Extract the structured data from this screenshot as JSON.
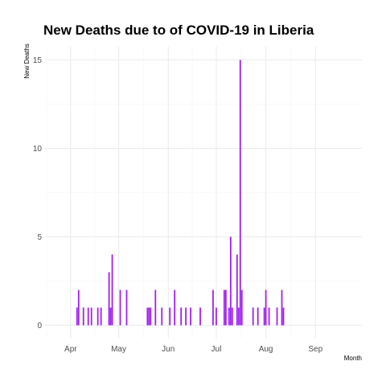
{
  "chart_data": {
    "type": "bar",
    "title": "New Deaths due to of COVID-19 in Liberia",
    "xlabel": "Month",
    "ylabel": "New Deaths",
    "x_range": [
      "2020-03-16",
      "2020-09-30"
    ],
    "ylim": [
      -0.75,
      15.75
    ],
    "y_ticks": [
      0,
      5,
      10,
      15
    ],
    "x_ticks": [
      {
        "label": "Apr",
        "date": "2020-04-01"
      },
      {
        "label": "May",
        "date": "2020-05-01"
      },
      {
        "label": "Jun",
        "date": "2020-06-01"
      },
      {
        "label": "Jul",
        "date": "2020-07-01"
      },
      {
        "label": "Aug",
        "date": "2020-08-01"
      },
      {
        "label": "Sep",
        "date": "2020-09-01"
      }
    ],
    "grid": true,
    "bar_color": "#a020f0",
    "series": [
      {
        "x": [
          "2020-04-05",
          "2020-04-06",
          "2020-04-09",
          "2020-04-12",
          "2020-04-14",
          "2020-04-18",
          "2020-04-20",
          "2020-04-25",
          "2020-04-26",
          "2020-04-27",
          "2020-05-02",
          "2020-05-06",
          "2020-05-19",
          "2020-05-20",
          "2020-05-21",
          "2020-05-24",
          "2020-05-28",
          "2020-06-02",
          "2020-06-05",
          "2020-06-09",
          "2020-06-12",
          "2020-06-15",
          "2020-06-21",
          "2020-06-29",
          "2020-07-01",
          "2020-07-06",
          "2020-07-07",
          "2020-07-09",
          "2020-07-10",
          "2020-07-11",
          "2020-07-14",
          "2020-07-15",
          "2020-07-16",
          "2020-07-17",
          "2020-07-24",
          "2020-07-27",
          "2020-07-31",
          "2020-08-01",
          "2020-08-03",
          "2020-08-08",
          "2020-08-11",
          "2020-08-12"
        ],
        "values": [
          1,
          2,
          1,
          1,
          1,
          1,
          1,
          3,
          1,
          4,
          2,
          2,
          1,
          1,
          1,
          2,
          1,
          1,
          2,
          1,
          1,
          1,
          1,
          2,
          1,
          2,
          2,
          1,
          5,
          1,
          4,
          1,
          15,
          2,
          1,
          1,
          1,
          2,
          1,
          1,
          2,
          1
        ]
      }
    ]
  }
}
